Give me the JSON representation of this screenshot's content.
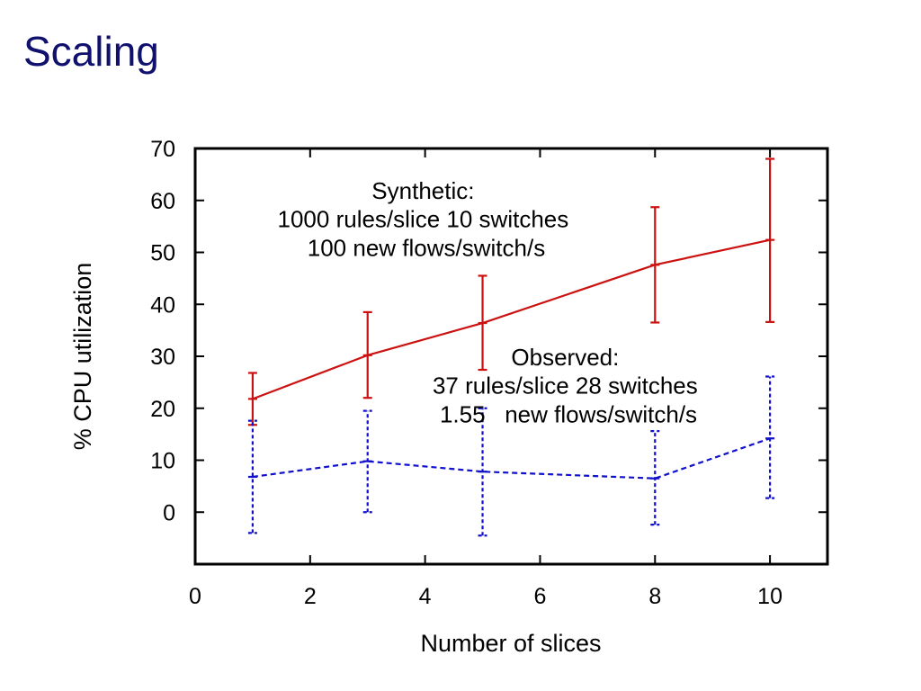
{
  "slide": {
    "title": "Scaling"
  },
  "chart_data": {
    "type": "line",
    "xlabel": "Number of slices",
    "ylabel": "% CPU utilization",
    "xlim": [
      0,
      11
    ],
    "ylim": [
      -10,
      70
    ],
    "x_ticks": [
      0,
      2,
      4,
      6,
      8,
      10
    ],
    "y_ticks": [
      0,
      10,
      20,
      30,
      40,
      50,
      60,
      70
    ],
    "grid": false,
    "series": [
      {
        "color": "#cc1111",
        "line_style": "solid",
        "x": [
          1,
          3,
          5,
          8,
          10
        ],
        "y": [
          21.8,
          30.2,
          36.4,
          47.6,
          52.4
        ],
        "err_low": [
          16.8,
          22.0,
          27.4,
          36.5,
          36.6
        ],
        "err_high": [
          26.8,
          38.5,
          45.5,
          58.7,
          68.0
        ]
      },
      {
        "color": "#1111cc",
        "line_style": "dashed",
        "x": [
          1,
          3,
          5,
          8,
          10
        ],
        "y": [
          6.8,
          9.8,
          7.8,
          6.5,
          14.2
        ],
        "err_low": [
          -4.0,
          0.0,
          -4.5,
          -2.4,
          2.7
        ],
        "err_high": [
          17.6,
          19.5,
          20.0,
          15.6,
          26.1
        ]
      }
    ],
    "annotations": [
      {
        "lines": [
          "Synthetic:",
          "1000 rules/slice 10 switches",
          "100 new flows/switch/s"
        ]
      },
      {
        "lines": [
          "Observed:",
          "37 rules/slice 28 switches",
          "1.55   new flows/switch/s"
        ]
      }
    ]
  }
}
